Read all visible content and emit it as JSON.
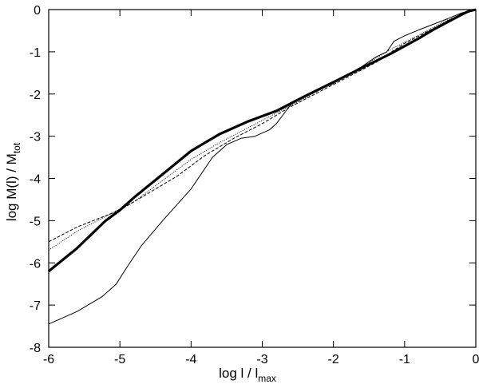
{
  "chart_data": {
    "type": "line",
    "title": "",
    "xlabel": {
      "main": "log l / l",
      "sub": "max"
    },
    "ylabel": {
      "main": "log M(l) / M",
      "sub": "tot"
    },
    "xlim": [
      -6,
      0
    ],
    "ylim": [
      -8,
      0
    ],
    "xticks": [
      -6,
      -5,
      -4,
      -3,
      -2,
      -1,
      0
    ],
    "yticks": [
      0,
      -1,
      -2,
      -3,
      -4,
      -5,
      -6,
      -7,
      -8
    ],
    "grid": false,
    "legend": "none",
    "series": [
      {
        "style": "thick-solid",
        "points": [
          [
            -6,
            -6.2
          ],
          [
            -5.6,
            -5.65
          ],
          [
            -5.2,
            -5.0
          ],
          [
            -5.0,
            -4.75
          ],
          [
            -4.8,
            -4.45
          ],
          [
            -4.4,
            -3.9
          ],
          [
            -4.0,
            -3.35
          ],
          [
            -3.6,
            -2.95
          ],
          [
            -3.2,
            -2.65
          ],
          [
            -2.8,
            -2.4
          ],
          [
            -2.4,
            -2.05
          ],
          [
            -2.0,
            -1.72
          ],
          [
            -1.6,
            -1.38
          ],
          [
            -1.2,
            -1.05
          ],
          [
            -0.8,
            -0.68
          ],
          [
            -0.6,
            -0.48
          ],
          [
            -0.4,
            -0.3
          ],
          [
            -0.2,
            -0.12
          ],
          [
            -0.1,
            -0.04
          ],
          [
            0,
            0
          ]
        ]
      },
      {
        "style": "thin-solid",
        "points": [
          [
            -6,
            -7.45
          ],
          [
            -5.6,
            -7.15
          ],
          [
            -5.25,
            -6.8
          ],
          [
            -5.05,
            -6.5
          ],
          [
            -4.9,
            -6.1
          ],
          [
            -4.7,
            -5.6
          ],
          [
            -4.4,
            -5.0
          ],
          [
            -4.0,
            -4.25
          ],
          [
            -3.7,
            -3.5
          ],
          [
            -3.5,
            -3.2
          ],
          [
            -3.3,
            -3.05
          ],
          [
            -3.1,
            -3.0
          ],
          [
            -2.9,
            -2.85
          ],
          [
            -2.8,
            -2.7
          ],
          [
            -2.6,
            -2.25
          ],
          [
            -2.4,
            -2.05
          ],
          [
            -2.2,
            -1.9
          ],
          [
            -2.0,
            -1.75
          ],
          [
            -1.8,
            -1.55
          ],
          [
            -1.6,
            -1.35
          ],
          [
            -1.4,
            -1.12
          ],
          [
            -1.25,
            -1.0
          ],
          [
            -1.15,
            -0.75
          ],
          [
            -1.0,
            -0.62
          ],
          [
            -0.8,
            -0.48
          ],
          [
            -0.6,
            -0.35
          ],
          [
            -0.4,
            -0.22
          ],
          [
            -0.2,
            -0.08
          ],
          [
            0,
            0
          ]
        ]
      },
      {
        "style": "dashed",
        "points": [
          [
            -6,
            -5.5
          ],
          [
            -5.6,
            -5.15
          ],
          [
            -5.0,
            -4.75
          ],
          [
            -4.6,
            -4.35
          ],
          [
            -4.2,
            -3.95
          ],
          [
            -3.8,
            -3.45
          ],
          [
            -3.4,
            -3.05
          ],
          [
            -3.0,
            -2.7
          ],
          [
            -2.6,
            -2.3
          ],
          [
            -2.2,
            -1.95
          ],
          [
            -1.8,
            -1.6
          ],
          [
            -1.4,
            -1.25
          ],
          [
            -1.2,
            -1.02
          ],
          [
            -1.0,
            -0.8
          ],
          [
            -0.6,
            -0.45
          ],
          [
            -0.3,
            -0.18
          ],
          [
            0,
            0
          ]
        ]
      },
      {
        "style": "dotted",
        "points": [
          [
            -6,
            -5.7
          ],
          [
            -5.6,
            -5.25
          ],
          [
            -5.2,
            -4.9
          ],
          [
            -4.8,
            -4.55
          ],
          [
            -4.4,
            -4.05
          ],
          [
            -4.0,
            -3.55
          ],
          [
            -3.6,
            -3.15
          ],
          [
            -3.2,
            -2.8
          ],
          [
            -2.8,
            -2.45
          ],
          [
            -2.4,
            -2.1
          ],
          [
            -2.0,
            -1.72
          ],
          [
            -1.6,
            -1.35
          ],
          [
            -1.2,
            -0.95
          ],
          [
            -0.8,
            -0.6
          ],
          [
            -0.4,
            -0.25
          ],
          [
            0,
            0
          ]
        ]
      }
    ]
  }
}
